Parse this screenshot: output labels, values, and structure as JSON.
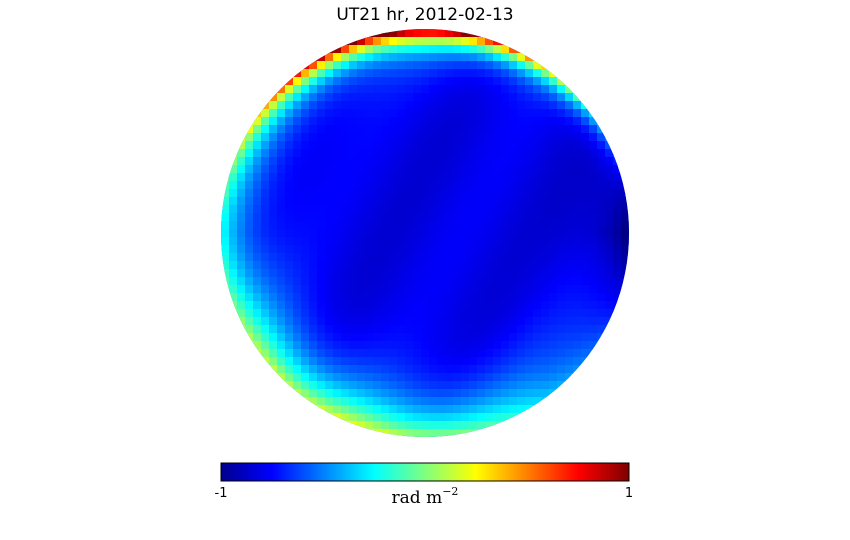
{
  "chart_data": {
    "type": "heatmap",
    "projection": "orthographic",
    "title": "UT21 hr, 2012-02-13",
    "colormap": "jet",
    "colorbar": {
      "min": -1,
      "max": 1,
      "min_label": "-1",
      "max_label": "1",
      "label_main": "rad m",
      "label_exponent": "−2",
      "orientation": "horizontal"
    },
    "field_description": "faraday rotation sky map",
    "approx_values": {
      "center": -0.8,
      "east_limb": -1.0,
      "west_limb": -0.55,
      "south_limb": -0.15,
      "north_limb": 0.9
    }
  },
  "colors": {
    "background": "#ffffff",
    "text": "#000000"
  }
}
